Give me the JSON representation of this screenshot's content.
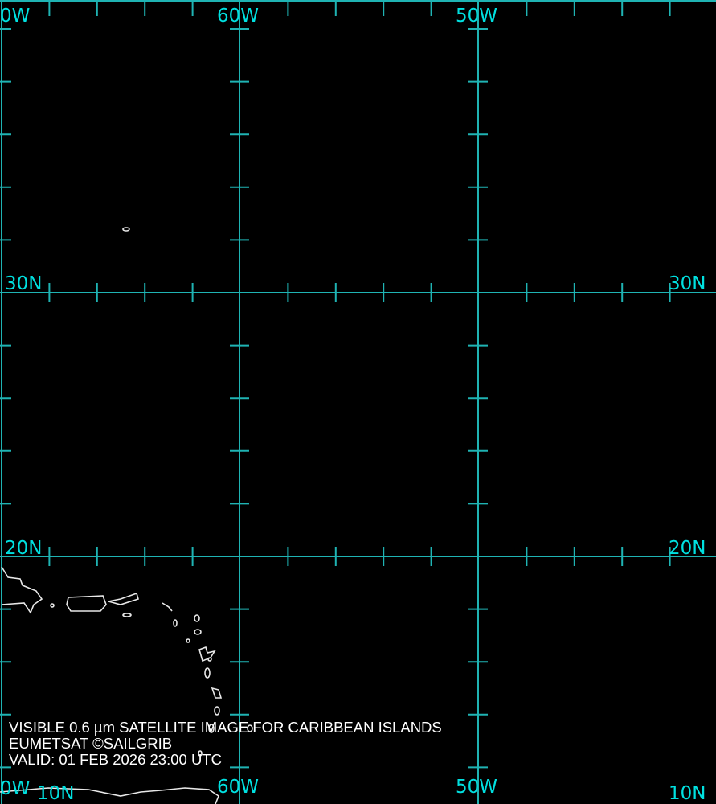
{
  "map": {
    "title_lines": [
      "VISIBLE 0.6 µm SATELLITE IMAGE FOR CARIBBEAN ISLANDS",
      "EUMETSAT ©SAILGRIB",
      "VALID:  01 FEB 2026 23:00 UTC"
    ],
    "grid_color": "#1fb3b3",
    "label_color": "#00e0e0",
    "coast_color": "#ffffff",
    "labels": {
      "top_70w": "0W",
      "top_60w": "60W",
      "top_50w": "50W",
      "left_30n": "30N",
      "right_30n": "30N",
      "left_20n": "20N",
      "right_20n": "20N",
      "bottom_70w": "0W",
      "bottom_left_10n": "10N",
      "bottom_60w": "60W",
      "bottom_50w": "50W",
      "bottom_right_10n": "10N"
    }
  }
}
